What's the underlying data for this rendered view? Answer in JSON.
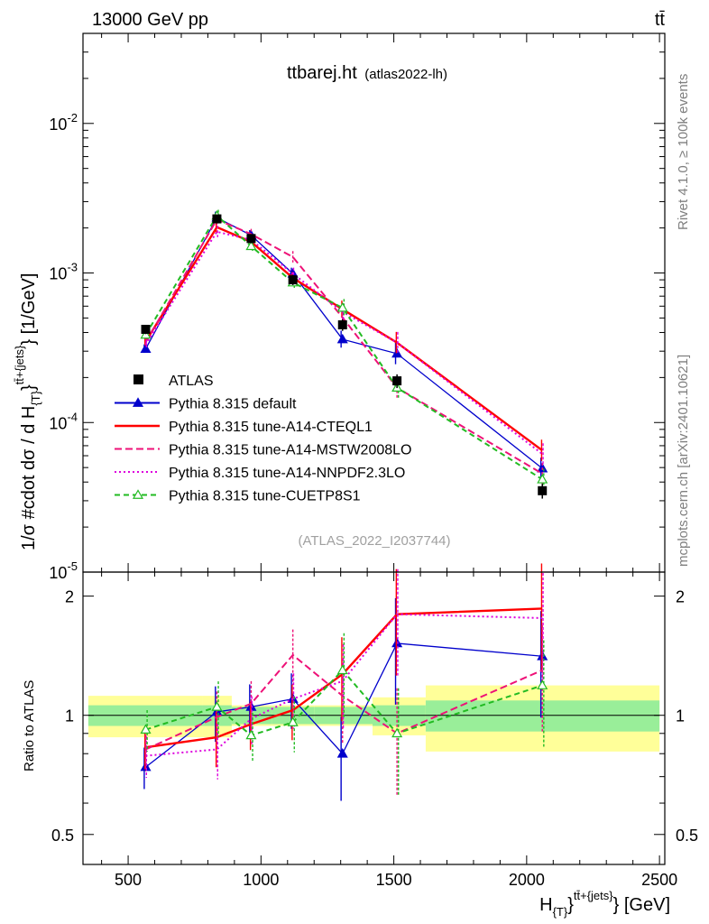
{
  "header": {
    "left": "13000 GeV pp",
    "right": "tt̄"
  },
  "title": {
    "main": "ttbarej.ht",
    "sub": "(atlas2022-lh)"
  },
  "watermark": "(ATLAS_2022_I2037744)",
  "side_labels": {
    "rivet": "Rivet 4.1.0, ≥ 100k events",
    "mcplots": "mcplots.cern.ch [arXiv:2401.10621]"
  },
  "axes": {
    "ylabel_main": "1/σ #cdot dσ / d H",
    "ylabel_main_sub": "{T}",
    "ylabel_main_sup": "tt̄+{jets}",
    "ylabel_main_unit": "} [1/GeV]",
    "ylabel_main_brace": "}",
    "ylabel_ratio": "Ratio to ATLAS",
    "xlabel": "H",
    "xlabel_sub": "{T}",
    "xlabel_sup": "tt̄+{jets}",
    "xlabel_unit": "} [GeV]"
  },
  "chart_data": {
    "type": "line",
    "x": [
      566,
      834,
      963,
      1120,
      1307,
      1512,
      2059
    ],
    "bin_edges": [
      350,
      780,
      890,
      1040,
      1200,
      1420,
      1620,
      2500
    ],
    "xlim": [
      330,
      2520
    ],
    "ylim_main": [
      1e-05,
      0.04
    ],
    "ylim_ratio": [
      0.42,
      2.3
    ],
    "xticks": [
      500,
      1000,
      1500,
      2000,
      2500
    ],
    "xtick_labels": [
      "500",
      "1000",
      "1500",
      "2000",
      "2500"
    ],
    "yticks_main": [
      {
        "base": "10",
        "exp": "-2",
        "v": 0.01
      },
      {
        "base": "10",
        "exp": "-3",
        "v": 0.001
      },
      {
        "base": "10",
        "exp": "-4",
        "v": 0.0001
      },
      {
        "base": "10",
        "exp": "-5",
        "v": 1e-05
      }
    ],
    "yticks_ratio": [
      {
        "label": "2",
        "v": 2
      },
      {
        "label": "1",
        "v": 1
      },
      {
        "label": "0.5",
        "v": 0.5
      }
    ],
    "data": {
      "name": "ATLAS",
      "values": [
        0.00042,
        0.0023,
        0.0017,
        0.0009,
        0.00045,
        0.00019,
        3.5e-05
      ],
      "errors": [
        3e-05,
        0.00015,
        0.00012,
        7e-05,
        4e-05,
        2e-05,
        4e-06
      ],
      "band_inner": [
        0.06,
        0.06,
        0.05,
        0.05,
        0.05,
        0.06,
        0.09
      ],
      "band_outer": [
        0.12,
        0.12,
        0.06,
        0.06,
        0.06,
        0.11,
        0.19
      ]
    },
    "series": [
      {
        "name": "Pythia 8.315 default",
        "color": "#0000cc",
        "dash": "",
        "marker": "tri-filled",
        "ratio": [
          0.74,
          1.02,
          1.05,
          1.1,
          0.8,
          1.52,
          1.41
        ],
        "rel_err": [
          0.12,
          0.16,
          0.14,
          0.16,
          0.24,
          0.3,
          0.3
        ]
      },
      {
        "name": "Pythia 8.315 tune-A14-CTEQL1",
        "color": "#ff0000",
        "dash": "",
        "marker": "none",
        "ratio": [
          0.83,
          0.88,
          0.95,
          1.03,
          1.27,
          1.8,
          1.86
        ],
        "rel_err": [
          0.12,
          0.16,
          0.14,
          0.16,
          0.24,
          0.3,
          0.3
        ]
      },
      {
        "name": "Pythia 8.315 tune-A14-MSTW2008LO",
        "color": "#ee1177",
        "dash": "8,4",
        "marker": "none",
        "ratio": [
          0.82,
          0.99,
          1.07,
          1.42,
          1.12,
          0.9,
          1.3
        ],
        "rel_err": [
          0.12,
          0.16,
          0.14,
          0.16,
          0.24,
          0.3,
          0.3
        ]
      },
      {
        "name": "Pythia 8.315 tune-A14-NNPDF2.3LO",
        "color": "#dd00dd",
        "dash": "2,3",
        "marker": "none",
        "ratio": [
          0.79,
          0.82,
          0.98,
          1.1,
          1.22,
          1.8,
          1.76
        ],
        "rel_err": [
          0.12,
          0.16,
          0.14,
          0.16,
          0.24,
          0.3,
          0.3
        ]
      },
      {
        "name": "Pythia 8.315 tune-CUETP8S1",
        "color": "#22bb22",
        "dash": "6,4",
        "marker": "tri-open",
        "ratio": [
          0.92,
          1.05,
          0.89,
          0.96,
          1.3,
          0.9,
          1.19
        ],
        "rel_err": [
          0.12,
          0.16,
          0.14,
          0.16,
          0.24,
          0.3,
          0.3
        ]
      }
    ]
  }
}
